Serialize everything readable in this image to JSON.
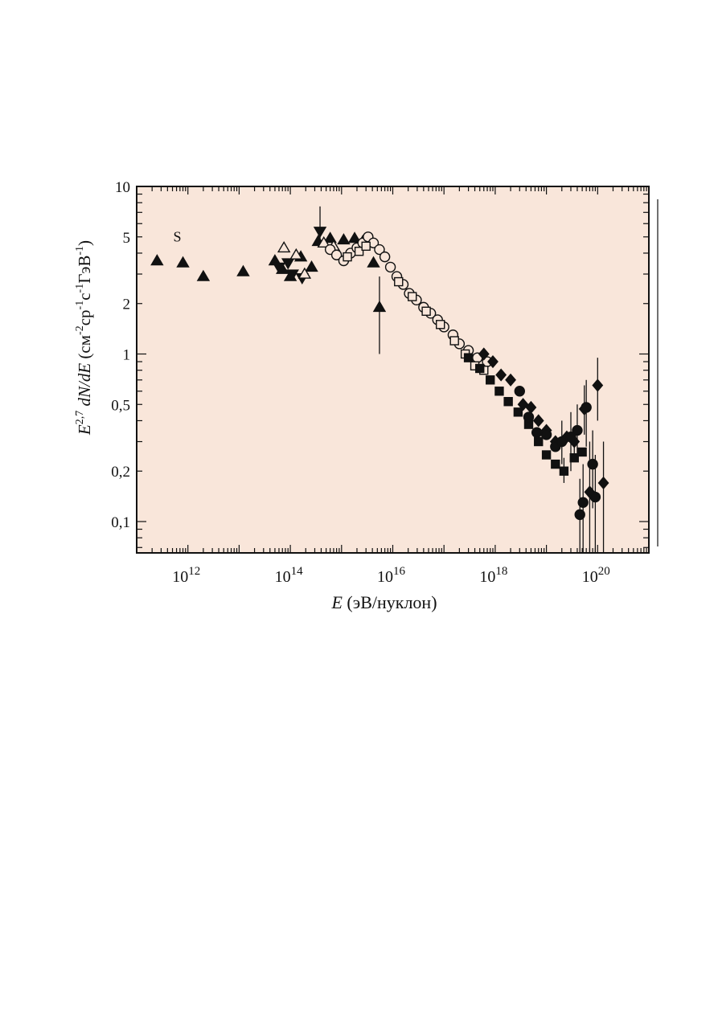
{
  "colors": {
    "plot_bg": "#f9e6da",
    "ink": "#111111",
    "frame": "#111111"
  },
  "chart_data": {
    "type": "scatter",
    "title": "",
    "xlabel_var": "E",
    "xlabel_unit": "(эВ/нуклон)",
    "ylabel_prefix": "E",
    "ylabel_exp": "2,7",
    "ylabel_mid": " dN/dE",
    "ylabel_units": [
      {
        "t": " (см",
        "sup": false
      },
      {
        "t": "-2",
        "sup": true
      },
      {
        "t": "ср",
        "sup": false
      },
      {
        "t": "-1",
        "sup": true
      },
      {
        "t": "с",
        "sup": false
      },
      {
        "t": "-1",
        "sup": true
      },
      {
        "t": "ГэВ",
        "sup": false
      },
      {
        "t": "-1",
        "sup": true
      },
      {
        "t": ")",
        "sup": false
      }
    ],
    "x_scale": "log",
    "y_scale": "log",
    "xlim": [
      100000000000.0,
      1e+21
    ],
    "ylim": [
      0.065,
      10
    ],
    "x_ticks": [
      {
        "base": "10",
        "exp": "12",
        "value": 1000000000000.0
      },
      {
        "base": "10",
        "exp": "14",
        "value": 100000000000000.0
      },
      {
        "base": "10",
        "exp": "16",
        "value": 1e+16
      },
      {
        "base": "10",
        "exp": "18",
        "value": 1e+18
      },
      {
        "base": "10",
        "exp": "20",
        "value": 1e+20
      }
    ],
    "y_ticks": [
      {
        "label": "10",
        "value": 10
      },
      {
        "label": "5",
        "value": 5
      },
      {
        "label": "2",
        "value": 2
      },
      {
        "label": "1",
        "value": 1
      },
      {
        "label": "0,5",
        "value": 0.5
      },
      {
        "label": "0,2",
        "value": 0.2
      },
      {
        "label": "0,1",
        "value": 0.1
      }
    ],
    "grid": false,
    "annotations": [
      {
        "text": "S",
        "x": 800000000000.0,
        "y": 4.7
      }
    ],
    "series": [
      {
        "marker": "triangle-up",
        "fill": "filled",
        "points": [
          {
            "x": 250000000000.0,
            "y": 3.6
          },
          {
            "x": 800000000000.0,
            "y": 3.5
          },
          {
            "x": 2000000000000.0,
            "y": 2.9
          },
          {
            "x": 12000000000000.0,
            "y": 3.1
          },
          {
            "x": 50000000000000.0,
            "y": 3.6
          },
          {
            "x": 70000000000000.0,
            "y": 3.2
          },
          {
            "x": 100000000000000.0,
            "y": 2.9
          },
          {
            "x": 160000000000000.0,
            "y": 3.8
          },
          {
            "x": 260000000000000.0,
            "y": 3.3
          },
          {
            "x": 350000000000000.0,
            "y": 4.7
          },
          {
            "x": 600000000000000.0,
            "y": 4.9
          },
          {
            "x": 1100000000000000.0,
            "y": 4.8
          },
          {
            "x": 1800000000000000.0,
            "y": 4.9
          },
          {
            "x": 2600000000000000.0,
            "y": 4.7
          },
          {
            "x": 4200000000000000.0,
            "y": 3.5
          },
          {
            "x": 5500000000000000.0,
            "y": 1.9,
            "err": [
              1.0,
              2.9
            ]
          }
        ]
      },
      {
        "marker": "triangle-down",
        "fill": "filled",
        "points": [
          {
            "x": 60000000000000.0,
            "y": 3.3
          },
          {
            "x": 90000000000000.0,
            "y": 3.5
          },
          {
            "x": 110000000000000.0,
            "y": 3.0
          },
          {
            "x": 170000000000000.0,
            "y": 2.85
          },
          {
            "x": 380000000000000.0,
            "y": 5.4,
            "err": [
              4.4,
              7.6
            ]
          }
        ]
      },
      {
        "marker": "triangle-up",
        "fill": "open",
        "points": [
          {
            "x": 75000000000000.0,
            "y": 4.3
          },
          {
            "x": 130000000000000.0,
            "y": 3.9
          },
          {
            "x": 190000000000000.0,
            "y": 3.0
          },
          {
            "x": 450000000000000.0,
            "y": 4.6
          },
          {
            "x": 700000000000000.0,
            "y": 4.4
          }
        ]
      },
      {
        "marker": "circle",
        "fill": "open",
        "points": [
          {
            "x": 600000000000000.0,
            "y": 4.2
          },
          {
            "x": 800000000000000.0,
            "y": 3.9
          },
          {
            "x": 1100000000000000.0,
            "y": 3.6
          },
          {
            "x": 1500000000000000.0,
            "y": 4.0
          },
          {
            "x": 2000000000000000.0,
            "y": 4.3
          },
          {
            "x": 2600000000000000.0,
            "y": 4.6
          },
          {
            "x": 3300000000000000.0,
            "y": 5.0
          },
          {
            "x": 4200000000000000.0,
            "y": 4.6
          },
          {
            "x": 5500000000000000.0,
            "y": 4.2
          },
          {
            "x": 7000000000000000.0,
            "y": 3.8
          },
          {
            "x": 9000000000000000.0,
            "y": 3.3
          },
          {
            "x": 1.2e+16,
            "y": 2.9
          },
          {
            "x": 1.6e+16,
            "y": 2.6
          },
          {
            "x": 2.1e+16,
            "y": 2.3
          },
          {
            "x": 2.9e+16,
            "y": 2.1
          },
          {
            "x": 4e+16,
            "y": 1.9
          },
          {
            "x": 5.5e+16,
            "y": 1.75
          },
          {
            "x": 7.5e+16,
            "y": 1.6
          },
          {
            "x": 1e+17,
            "y": 1.45
          },
          {
            "x": 1.5e+17,
            "y": 1.3
          },
          {
            "x": 2e+17,
            "y": 1.15
          },
          {
            "x": 3e+17,
            "y": 1.05
          },
          {
            "x": 4.5e+17,
            "y": 0.95
          },
          {
            "x": 7e+17,
            "y": 0.9
          }
        ]
      },
      {
        "marker": "square",
        "fill": "open",
        "points": [
          {
            "x": 1300000000000000.0,
            "y": 3.8
          },
          {
            "x": 2200000000000000.0,
            "y": 4.1
          },
          {
            "x": 3000000000000000.0,
            "y": 4.4
          },
          {
            "x": 1.3e+16,
            "y": 2.7
          },
          {
            "x": 2.4e+16,
            "y": 2.2
          },
          {
            "x": 4.5e+16,
            "y": 1.8
          },
          {
            "x": 8.5e+16,
            "y": 1.5
          },
          {
            "x": 1.6e+17,
            "y": 1.2
          },
          {
            "x": 2.6e+17,
            "y": 1.0
          },
          {
            "x": 4e+17,
            "y": 0.85
          },
          {
            "x": 6e+17,
            "y": 0.8
          }
        ]
      },
      {
        "marker": "square",
        "fill": "filled",
        "points": [
          {
            "x": 3e+17,
            "y": 0.95
          },
          {
            "x": 5e+17,
            "y": 0.82
          },
          {
            "x": 8e+17,
            "y": 0.7
          },
          {
            "x": 1.2e+18,
            "y": 0.6
          },
          {
            "x": 1.8e+18,
            "y": 0.52
          },
          {
            "x": 2.8e+18,
            "y": 0.45
          },
          {
            "x": 4.5e+18,
            "y": 0.38
          },
          {
            "x": 7e+18,
            "y": 0.3
          },
          {
            "x": 1e+19,
            "y": 0.25
          },
          {
            "x": 1.5e+19,
            "y": 0.22
          },
          {
            "x": 2.2e+19,
            "y": 0.2,
            "err": [
              0.17,
              0.24
            ]
          },
          {
            "x": 3.5e+19,
            "y": 0.24
          },
          {
            "x": 5e+19,
            "y": 0.26
          }
        ]
      },
      {
        "marker": "diamond",
        "fill": "filled",
        "points": [
          {
            "x": 6e+17,
            "y": 1.0
          },
          {
            "x": 9e+17,
            "y": 0.9
          },
          {
            "x": 1.3e+18,
            "y": 0.75
          },
          {
            "x": 2e+18,
            "y": 0.7
          },
          {
            "x": 3.5e+18,
            "y": 0.5
          },
          {
            "x": 5e+18,
            "y": 0.48
          },
          {
            "x": 7e+18,
            "y": 0.4
          },
          {
            "x": 1e+19,
            "y": 0.35
          },
          {
            "x": 1.5e+19,
            "y": 0.3
          },
          {
            "x": 2.5e+19,
            "y": 0.32
          },
          {
            "x": 3.5e+19,
            "y": 0.3,
            "err": [
              0.25,
              0.36
            ]
          },
          {
            "x": 5.5e+19,
            "y": 0.47,
            "err": [
              0.33,
              0.65
            ]
          },
          {
            "x": 7e+19,
            "y": 0.15,
            "err": [
              0.065,
              0.3
            ]
          },
          {
            "x": 1e+20,
            "y": 0.65,
            "err": [
              0.4,
              0.95
            ]
          },
          {
            "x": 1.3e+20,
            "y": 0.17,
            "err": [
              0.065,
              0.3
            ]
          }
        ]
      },
      {
        "marker": "circle",
        "fill": "filled",
        "points": [
          {
            "x": 3e+18,
            "y": 0.6
          },
          {
            "x": 4.5e+18,
            "y": 0.42
          },
          {
            "x": 6.5e+18,
            "y": 0.34
          },
          {
            "x": 1e+19,
            "y": 0.33
          },
          {
            "x": 1.5e+19,
            "y": 0.28
          },
          {
            "x": 2e+19,
            "y": 0.3,
            "err": [
              0.22,
              0.4
            ]
          },
          {
            "x": 3e+19,
            "y": 0.32,
            "err": [
              0.2,
              0.45
            ]
          },
          {
            "x": 4e+19,
            "y": 0.35,
            "err": [
              0.24,
              0.5
            ]
          },
          {
            "x": 4.5e+19,
            "y": 0.11,
            "err": [
              0.065,
              0.18
            ]
          },
          {
            "x": 5.2e+19,
            "y": 0.13,
            "err": [
              0.065,
              0.22
            ]
          },
          {
            "x": 6e+19,
            "y": 0.48,
            "err": [
              0.28,
              0.7
            ]
          },
          {
            "x": 8e+19,
            "y": 0.22,
            "err": [
              0.12,
              0.35
            ]
          },
          {
            "x": 9e+19,
            "y": 0.14,
            "err": [
              0.065,
              0.25
            ]
          }
        ]
      }
    ]
  }
}
